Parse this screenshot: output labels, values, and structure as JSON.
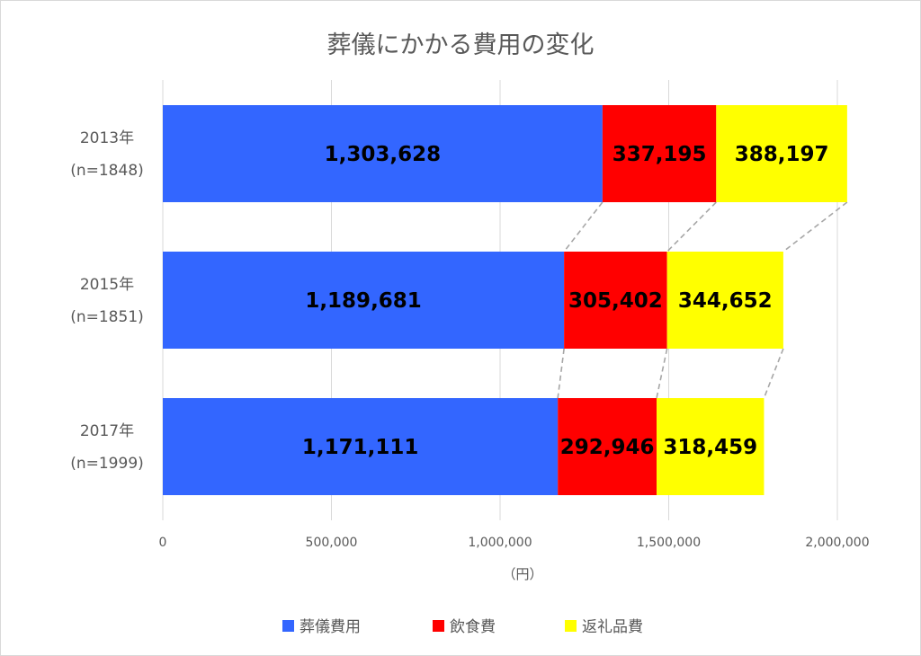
{
  "chart_data": {
    "type": "bar",
    "orientation": "horizontal",
    "stacked": true,
    "title": "葬儀にかかる費用の変化",
    "xlabel": "（円）",
    "ylabel": "",
    "xlim": [
      0,
      2000000
    ],
    "x_ticks": [
      0,
      500000,
      1000000,
      1500000,
      2000000
    ],
    "x_tick_labels": [
      "0",
      "500,000",
      "1,000,000",
      "1,500,000",
      "2,000,000"
    ],
    "grid": true,
    "legend_position": "bottom",
    "categories": [
      {
        "year": "2013年",
        "n": "(n=1848)"
      },
      {
        "year": "2015年",
        "n": "(n=1851)"
      },
      {
        "year": "2017年",
        "n": "(n=1999)"
      }
    ],
    "series": [
      {
        "name": "葬儀費用",
        "color": "#3366ff",
        "values": [
          1303628,
          1189681,
          1171111
        ],
        "labels": [
          "1,303,628",
          "1,189,681",
          "1,171,111"
        ]
      },
      {
        "name": "飲食費",
        "color": "#ff0000",
        "values": [
          337195,
          305402,
          292946
        ],
        "labels": [
          "337,195",
          "305,402",
          "292,946"
        ]
      },
      {
        "name": "返礼品費",
        "color": "#ffff00",
        "values": [
          388197,
          344652,
          318459
        ],
        "labels": [
          "388,197",
          "344,652",
          "318,459"
        ]
      }
    ],
    "series_lines": true
  }
}
